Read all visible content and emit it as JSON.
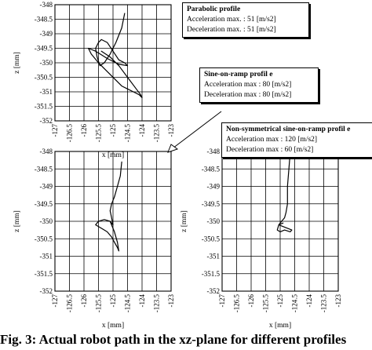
{
  "chart_data": [
    {
      "type": "line",
      "xlabel": "x [mm]",
      "ylabel": "z [mm]",
      "xlim": [
        -127,
        -123
      ],
      "ylim": [
        -352,
        -348
      ],
      "xticks": [
        "-127",
        "-126.5",
        "-126",
        "-125.5",
        "-125",
        "-124.5",
        "-124",
        "-123.5",
        "-123"
      ],
      "yticks": [
        "-348",
        "-348.5",
        "-349",
        "-349.5",
        "-350",
        "-350.5",
        "-351",
        "-351.5",
        "-352"
      ],
      "grid": true,
      "series": [
        {
          "x": [
            -124.6,
            -124.7,
            -124.9,
            -125.1,
            -125.3,
            -125.45,
            -125.55,
            -125.6,
            -125.5,
            -125.4,
            -125.2,
            -125.0,
            -124.8,
            -124.6,
            -124.5,
            -124.8,
            -125.2,
            -125.6,
            -125.85,
            -125.75,
            -125.5,
            -125.3,
            -125.1,
            -124.9,
            -124.7,
            -124.5,
            -124.3,
            -124.1,
            -124.0,
            -124.05,
            -124.2,
            -124.5,
            -124.8,
            -125.1,
            -125.4
          ],
          "y": [
            -348.3,
            -348.8,
            -349.3,
            -349.7,
            -350.0,
            -350.1,
            -349.8,
            -349.5,
            -349.3,
            -349.2,
            -349.3,
            -349.6,
            -349.9,
            -350.0,
            -350.1,
            -350.05,
            -349.85,
            -349.6,
            -349.5,
            -349.7,
            -350.0,
            -350.2,
            -350.4,
            -350.6,
            -350.8,
            -350.9,
            -351.0,
            -351.1,
            -351.2,
            -351.1,
            -350.9,
            -350.5,
            -350.1,
            -349.8,
            -349.6
          ]
        }
      ]
    },
    {
      "type": "line",
      "xlabel": "x [mm]",
      "ylabel": "z [mm]",
      "xlim": [
        -127,
        -123
      ],
      "ylim": [
        -352,
        -348
      ],
      "xticks": [
        "-127",
        "-126.5",
        "-126",
        "-125.5",
        "-125",
        "-124.5",
        "-124",
        "-123.5",
        "-123"
      ],
      "yticks": [
        "-348",
        "-348.5",
        "-349",
        "-349.5",
        "-350",
        "-350.5",
        "-351",
        "-351.5",
        "-352"
      ],
      "grid": true,
      "series": [
        {
          "x": [
            -124.7,
            -124.75,
            -124.85,
            -124.95,
            -125.05,
            -125.1,
            -125.05,
            -125.0,
            -125.1,
            -125.3,
            -125.5,
            -125.6,
            -125.4,
            -125.2,
            -125.05,
            -124.95,
            -124.85,
            -124.8,
            -124.85,
            -124.95,
            -125.1
          ],
          "y": [
            -348.3,
            -348.7,
            -349.0,
            -349.3,
            -349.5,
            -349.7,
            -349.9,
            -350.1,
            -350.0,
            -349.95,
            -350.0,
            -350.1,
            -350.2,
            -350.3,
            -350.45,
            -350.6,
            -350.75,
            -350.85,
            -350.6,
            -350.3,
            -350.0
          ]
        }
      ]
    },
    {
      "type": "line",
      "xlabel": "x [mm]",
      "ylabel": "z [mm]",
      "xlim": [
        -127,
        -123
      ],
      "ylim": [
        -352,
        -348
      ],
      "xticks": [
        "-127",
        "-126.5",
        "-126",
        "-125.5",
        "-125",
        "-124.5",
        "-124",
        "-123.5",
        "-123"
      ],
      "yticks": [
        "-348",
        "-348.5",
        "-349",
        "-349.5",
        "-350",
        "-350.5",
        "-351",
        "-351.5",
        "-352"
      ],
      "grid": true,
      "series": [
        {
          "x": [
            -124.65,
            -124.7,
            -124.75,
            -124.75,
            -124.8,
            -124.85,
            -124.95,
            -125.05,
            -125.1,
            -125.0,
            -124.85,
            -124.65,
            -124.6,
            -124.9,
            -125.05,
            -124.9
          ],
          "y": [
            -348.0,
            -348.5,
            -349.0,
            -349.5,
            -349.75,
            -349.9,
            -350.0,
            -350.1,
            -350.25,
            -350.3,
            -350.25,
            -350.3,
            -350.25,
            -350.15,
            -350.1,
            -350.05
          ]
        }
      ]
    }
  ],
  "legend_boxes": [
    {
      "title": "Parabolic profile",
      "lines": [
        "Acceleration max. : 51 [m/s2]",
        "Deceleration max. : 51 [m/s2]"
      ]
    },
    {
      "title": "Sine-on-ramp profil e",
      "lines": [
        "Acceleration max : 80 [m/s2]",
        "Deceleration max : 80 [m/s2]"
      ]
    },
    {
      "title": "Non-symmetrical sine-on-ramp profil e",
      "lines": [
        "Acceleration max : 120 [m/s2]",
        "Deceleration max : 60 [m/s2]"
      ]
    }
  ],
  "caption": "Fig. 3: Actual robot path in the xz-plane for different profiles"
}
